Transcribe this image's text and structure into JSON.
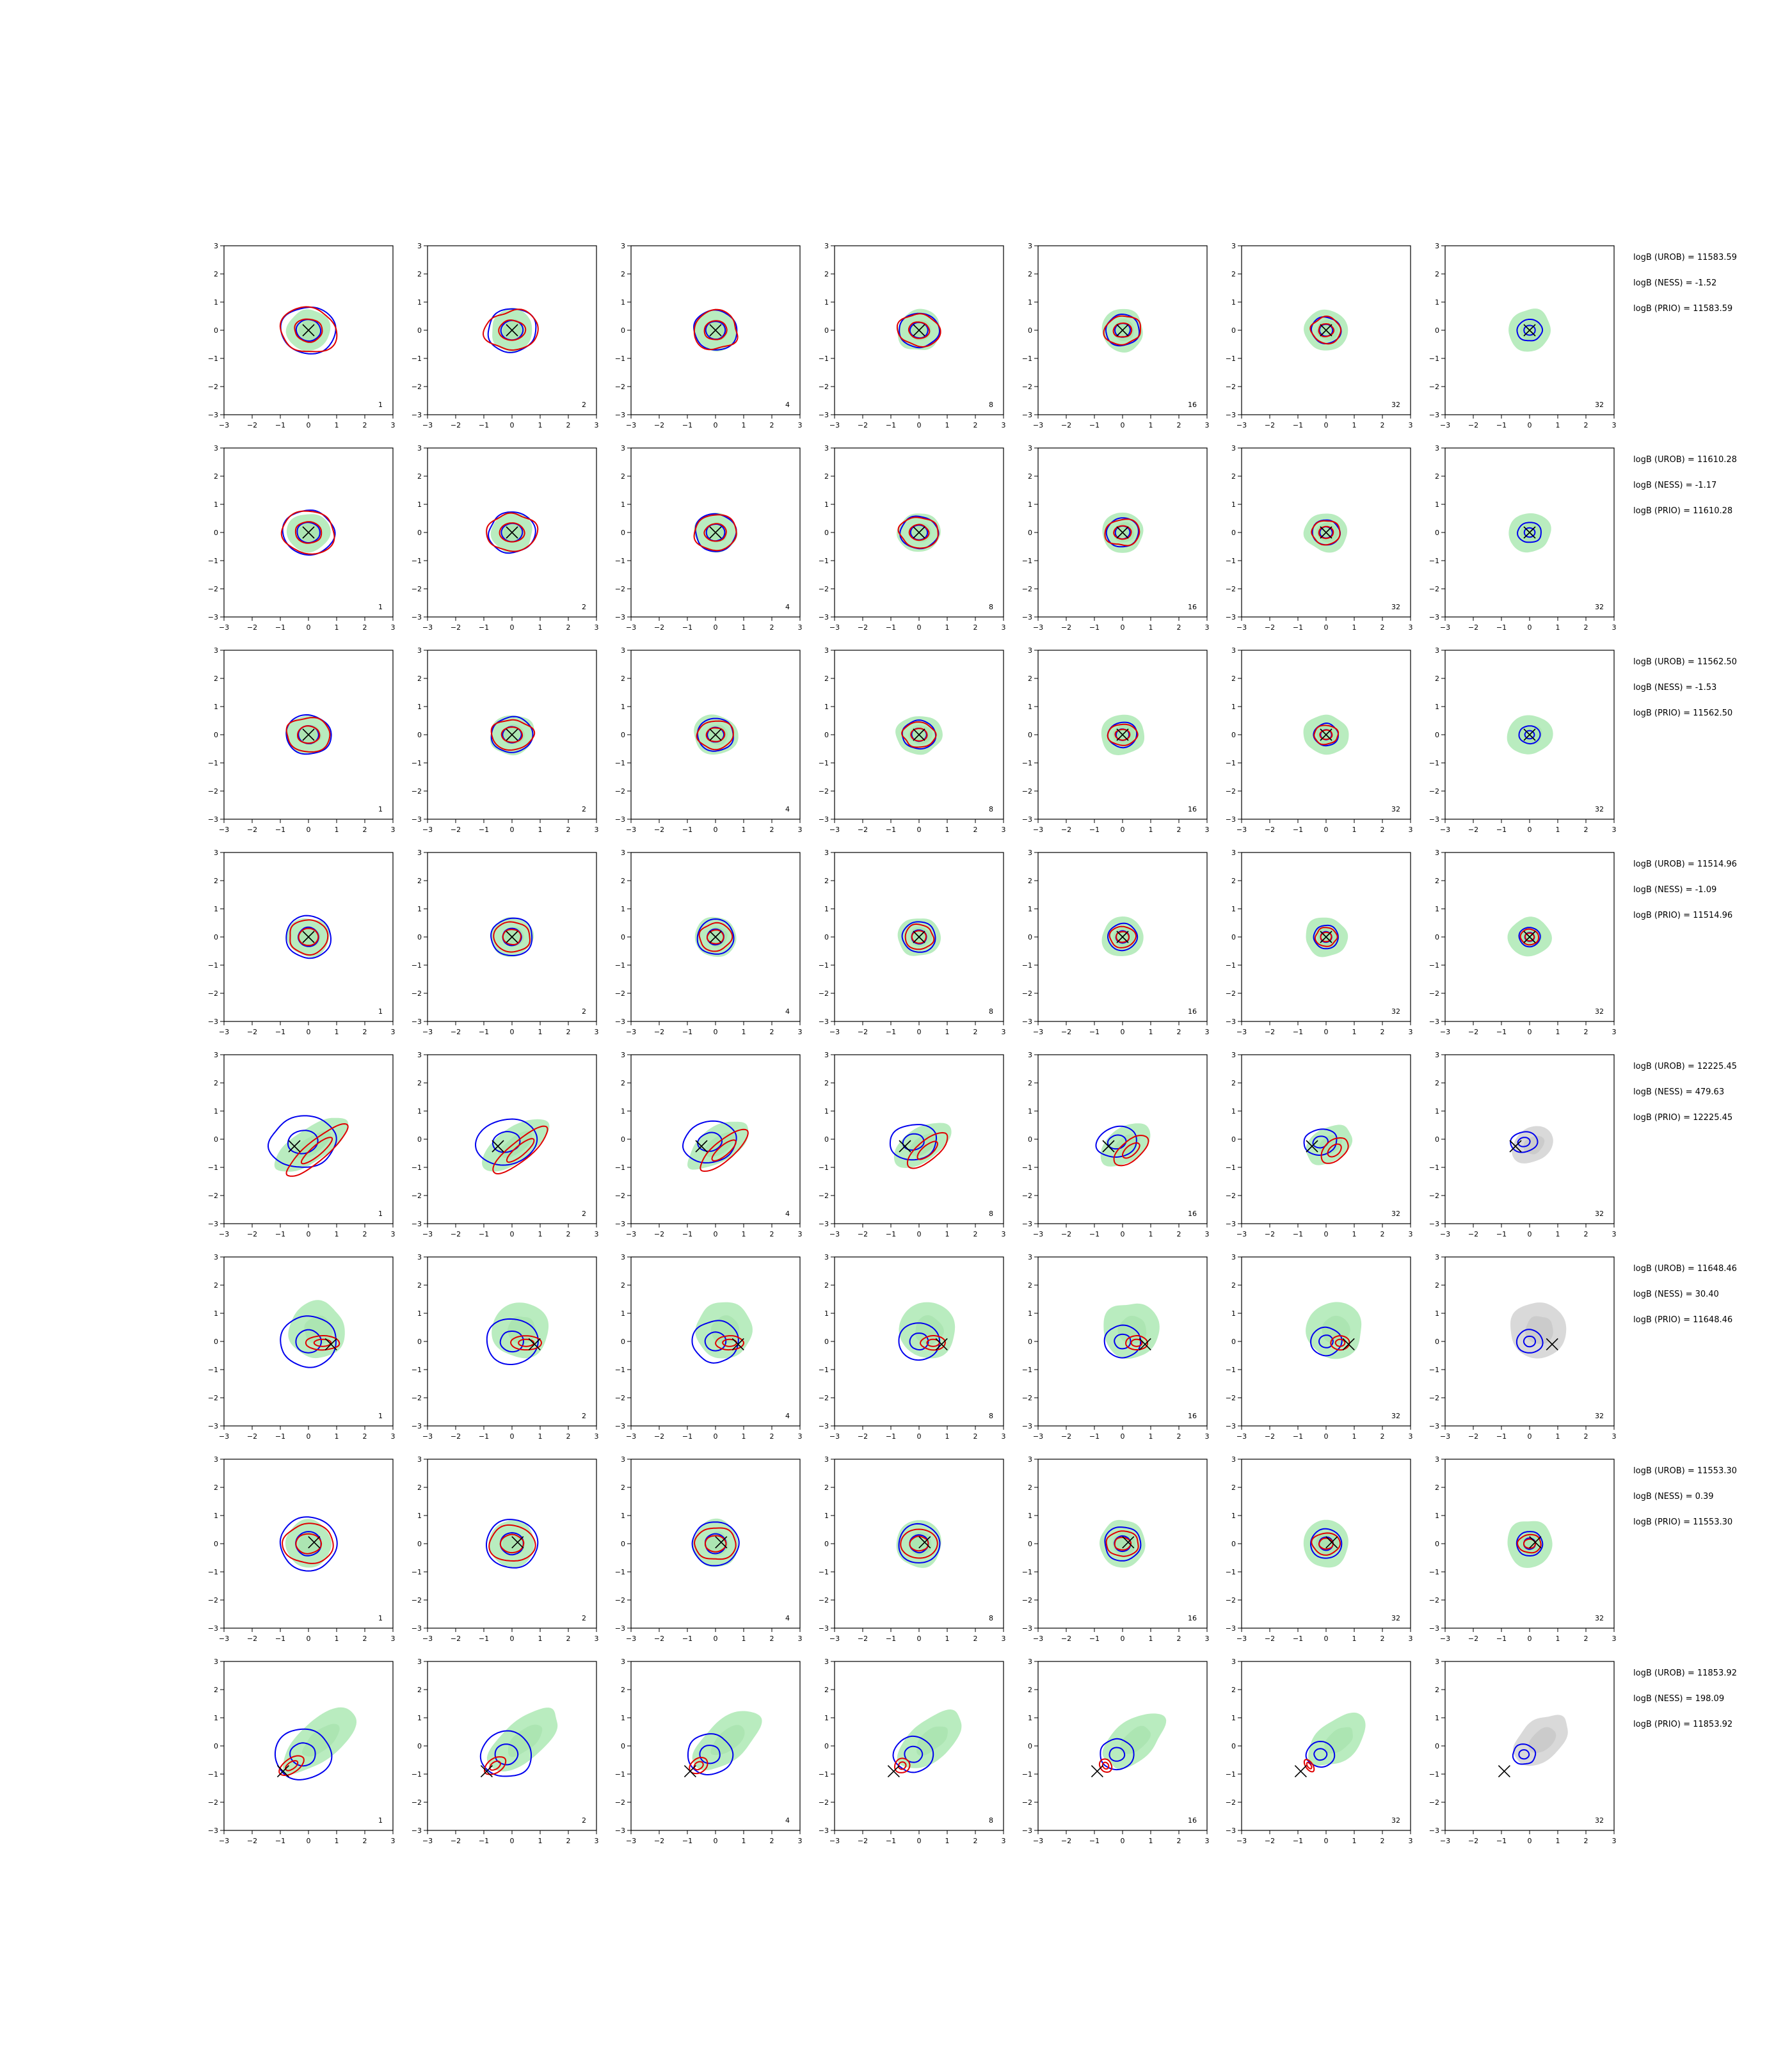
{
  "figure": {
    "rows": 8,
    "cols": 7,
    "axis": {
      "xlim": [
        -3,
        3
      ],
      "ylim": [
        -3,
        3
      ],
      "ticks": [
        "−3",
        "−2",
        "−1",
        "0",
        "1",
        "2",
        "3"
      ]
    },
    "colors": {
      "green_fill": "#b9ecbf",
      "gray_fill": "#d9d9d9",
      "blue_contour": "#0000ee",
      "red_contour": "#e00000",
      "marker": "#000000"
    }
  },
  "chart_data": {
    "type": "contour",
    "panel_labels": [
      "1",
      "2",
      "4",
      "8",
      "16",
      "32",
      "32"
    ],
    "rows": [
      {
        "stats": [
          "logB (UROB) = 11583.59",
          "logB (NESS) = -1.52",
          "logB (PRIO) = 11583.59"
        ],
        "marker_xy": [
          0.0,
          0.0
        ]
      },
      {
        "stats": [
          "logB (UROB) = 11610.28",
          "logB (NESS) = -1.17",
          "logB (PRIO) = 11610.28"
        ],
        "marker_xy": [
          0.0,
          0.0
        ]
      },
      {
        "stats": [
          "logB (UROB) = 11562.50",
          "logB (NESS) = -1.53",
          "logB (PRIO) = 11562.50"
        ],
        "marker_xy": [
          0.0,
          0.0
        ]
      },
      {
        "stats": [
          "logB (UROB) = 11514.96",
          "logB (NESS) = -1.09",
          "logB (PRIO) = 11514.96"
        ],
        "marker_xy": [
          0.0,
          0.0
        ]
      },
      {
        "stats": [
          "logB (UROB) = 12225.45",
          "logB (NESS) = 479.63",
          "logB (PRIO) = 12225.45"
        ],
        "marker_xy": [
          -0.5,
          -0.25
        ]
      },
      {
        "stats": [
          "logB (UROB) = 11648.46",
          "logB (NESS) = 30.40",
          "logB (PRIO) = 11648.46"
        ],
        "marker_xy": [
          0.8,
          -0.1
        ]
      },
      {
        "stats": [
          "logB (UROB) = 11553.30",
          "logB (NESS) = 0.39",
          "logB (PRIO) = 11553.30"
        ],
        "marker_xy": [
          0.2,
          0.05
        ]
      },
      {
        "stats": [
          "logB (UROB) = 11853.92",
          "logB (NESS) = 198.09",
          "logB (PRIO) = 11853.92"
        ],
        "marker_xy": [
          -0.9,
          -0.9
        ]
      }
    ]
  }
}
